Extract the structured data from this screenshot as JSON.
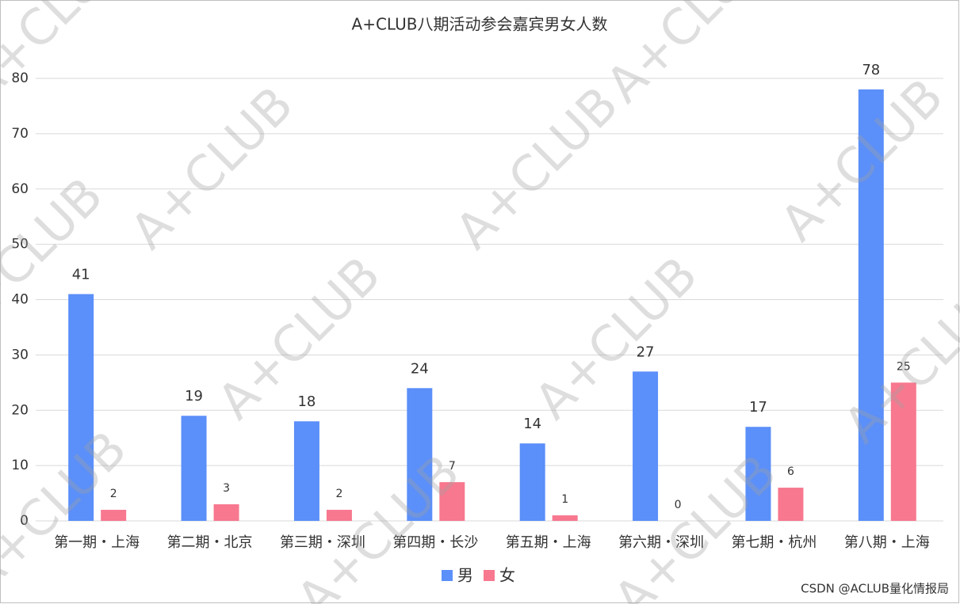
{
  "chart_data": {
    "type": "bar",
    "title": "A+CLUB八期活动参会嘉宾男女人数",
    "categories": [
      "第一期・上海",
      "第二期・北京",
      "第三期・深圳",
      "第四期・长沙",
      "第五期・上海",
      "第六期・深圳",
      "第七期・杭州",
      "第八期・上海"
    ],
    "series": [
      {
        "name": "男",
        "color": "#5b8ff9",
        "values": [
          41,
          19,
          18,
          24,
          14,
          27,
          17,
          78
        ]
      },
      {
        "name": "女",
        "color": "#f7788f",
        "values": [
          2,
          3,
          2,
          7,
          1,
          0,
          6,
          25
        ]
      }
    ],
    "ylim": [
      0,
      80
    ],
    "yticks": [
      0,
      10,
      20,
      30,
      40,
      50,
      60,
      70,
      80
    ],
    "grid": true,
    "legend": "bottom",
    "watermark": "A+CLUB",
    "credit": "CSDN @ACLUB量化情报局"
  }
}
